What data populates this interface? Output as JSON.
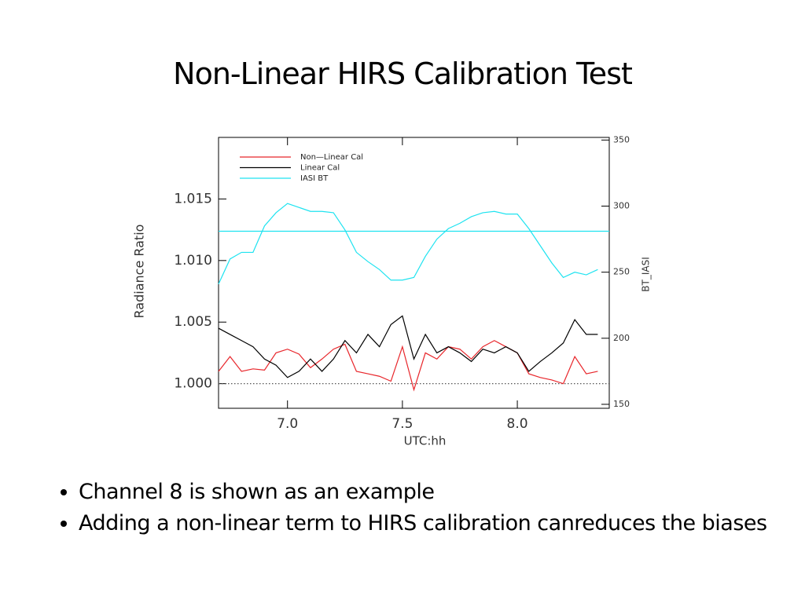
{
  "slide": {
    "title": "Non-Linear HIRS Calibration Test",
    "bullets": [
      "Channel 8 is shown as an example",
      "Adding a non-linear term to HIRS calibration canreduces the biases"
    ]
  },
  "chart_data": {
    "type": "line",
    "xlabel": "UTC:hh",
    "ylabel": "Radiance  Ratio",
    "y2label": "BT_IASI",
    "xlim": [
      6.7,
      8.4
    ],
    "ylim": [
      0.998,
      1.02
    ],
    "y2lim": [
      147,
      352
    ],
    "xticks": [
      {
        "value": 7,
        "label": "7.0"
      },
      {
        "value": 7.5,
        "label": "7.5"
      },
      {
        "value": 8,
        "label": "8.0"
      }
    ],
    "yticks": [
      {
        "value": 1,
        "label": "1.000"
      },
      {
        "value": 1.005,
        "label": "1.005"
      },
      {
        "value": 1.01,
        "label": "1.010"
      },
      {
        "value": 1.015,
        "label": "1.015"
      }
    ],
    "y2ticks": [
      150,
      200,
      250,
      300,
      350
    ],
    "legend": "upper left",
    "x": [
      6.7,
      6.75,
      6.8,
      6.85,
      6.9,
      6.95,
      7.0,
      7.05,
      7.1,
      7.15,
      7.2,
      7.25,
      7.3,
      7.35,
      7.4,
      7.45,
      7.5,
      7.55,
      7.6,
      7.65,
      7.7,
      7.75,
      7.8,
      7.85,
      7.9,
      7.95,
      8.0,
      8.05,
      8.1,
      8.15,
      8.2,
      8.25,
      8.3,
      8.35
    ],
    "series": [
      {
        "name": "Non—Linear Cal",
        "color": "#e8262b",
        "axis": "y",
        "values": [
          1.001,
          1.0022,
          1.001,
          1.0012,
          1.0011,
          1.0025,
          1.0028,
          1.0024,
          1.0013,
          1.002,
          1.0028,
          1.0032,
          1.001,
          1.0008,
          1.0006,
          1.0002,
          1.003,
          0.9995,
          1.0025,
          1.002,
          1.003,
          1.0028,
          1.002,
          1.003,
          1.0035,
          1.003,
          1.0025,
          1.0008,
          1.0005,
          1.0003,
          1.0,
          1.0022,
          1.0008,
          1.001
        ]
      },
      {
        "name": "Linear Cal",
        "color": "#000000",
        "axis": "y",
        "values": [
          1.0045,
          1.004,
          1.0035,
          1.003,
          1.002,
          1.0015,
          1.0005,
          1.001,
          1.002,
          1.001,
          1.002,
          1.0035,
          1.0025,
          1.004,
          1.003,
          1.0048,
          1.0055,
          1.002,
          1.004,
          1.0025,
          1.003,
          1.0025,
          1.0018,
          1.0028,
          1.0025,
          1.003,
          1.0025,
          1.001,
          1.0018,
          1.0025,
          1.0033,
          1.0052,
          1.004,
          1.004
        ]
      },
      {
        "name": "IASI BT",
        "color": "#1ee3f0",
        "axis": "y2",
        "values": [
          241,
          260,
          265,
          265,
          285,
          295,
          302,
          299,
          296,
          296,
          295,
          282,
          265,
          258,
          252,
          244,
          244,
          246,
          262,
          275,
          283,
          287,
          292,
          295,
          296,
          294,
          294,
          283,
          270,
          257,
          246,
          250,
          248,
          252
        ]
      }
    ],
    "reference_lines": [
      {
        "axis": "y",
        "value": 1.0,
        "color": "#555555",
        "dashed": true
      },
      {
        "axis": "y2",
        "value": 281,
        "color": "#1ee3f0",
        "dashed": false
      }
    ]
  }
}
